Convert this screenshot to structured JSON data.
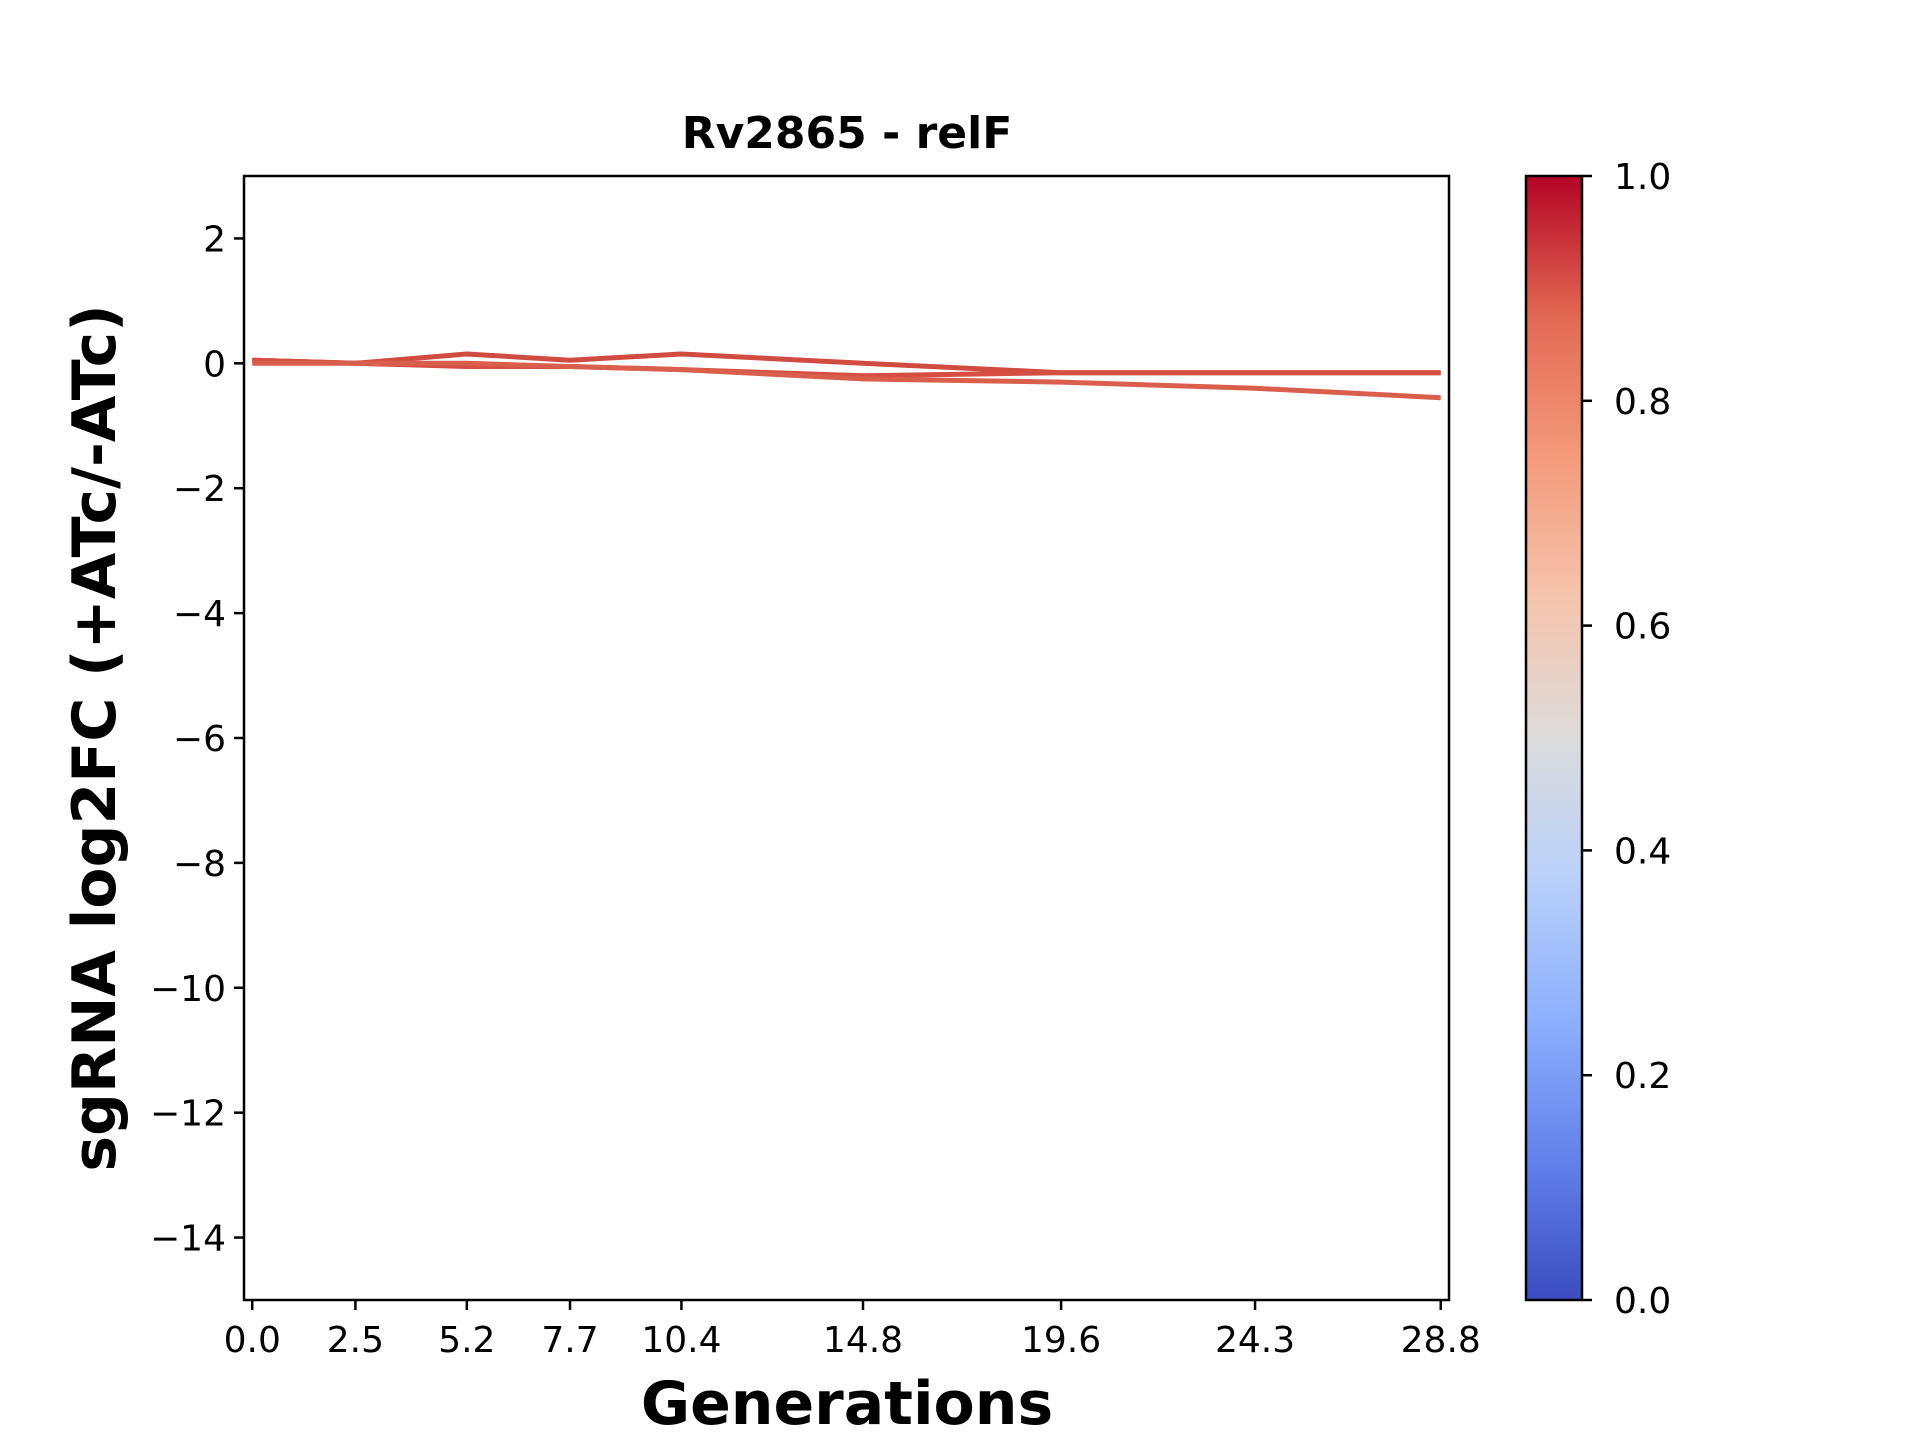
{
  "chart_data": {
    "type": "line",
    "title": "Rv2865 - relF",
    "xlabel": "Generations",
    "ylabel": "sgRNA log2FC (+ATc/-ATc)",
    "xlim": [
      -0.2,
      29.0
    ],
    "ylim": [
      -15,
      3
    ],
    "x_ticks": [
      "0.0",
      "2.5",
      "5.2",
      "7.7",
      "10.4",
      "14.8",
      "19.6",
      "24.3",
      "28.8"
    ],
    "y_ticks": [
      2,
      0,
      -2,
      -4,
      -6,
      -8,
      -10,
      -12,
      -14
    ],
    "grid": false,
    "series": [
      {
        "x": [
          0.0,
          2.5,
          5.2,
          7.7,
          10.4,
          14.8,
          19.6,
          24.3,
          28.8
        ],
        "values": [
          0.05,
          0.0,
          0.15,
          0.05,
          0.15,
          0.0,
          -0.15,
          -0.15,
          -0.15
        ],
        "color": "#d24b40"
      },
      {
        "x": [
          0.0,
          2.5,
          5.2,
          7.7,
          10.4,
          14.8,
          19.6,
          24.3,
          28.8
        ],
        "values": [
          0.05,
          0.0,
          -0.05,
          -0.05,
          -0.1,
          -0.2,
          -0.15,
          -0.15,
          -0.15
        ],
        "color": "#d54e41"
      },
      {
        "x": [
          0.0,
          2.5,
          5.2,
          7.7,
          10.4,
          14.8,
          19.6,
          24.3,
          28.8
        ],
        "values": [
          0.0,
          0.0,
          0.0,
          -0.05,
          -0.1,
          -0.25,
          -0.3,
          -0.4,
          -0.55
        ],
        "color": "#d95f4c"
      }
    ],
    "colorbar": {
      "colormap": "coolwarm",
      "range": [
        0.0,
        1.0
      ],
      "ticks": [
        "1.0",
        "0.8",
        "0.6",
        "0.4",
        "0.2",
        "0.0"
      ],
      "colors": [
        "#3b4cc0",
        "#6282ea",
        "#8db0fe",
        "#b8d0f9",
        "#dddcdc",
        "#f5c4ac",
        "#f49a7b",
        "#e26952",
        "#b40426"
      ]
    }
  }
}
